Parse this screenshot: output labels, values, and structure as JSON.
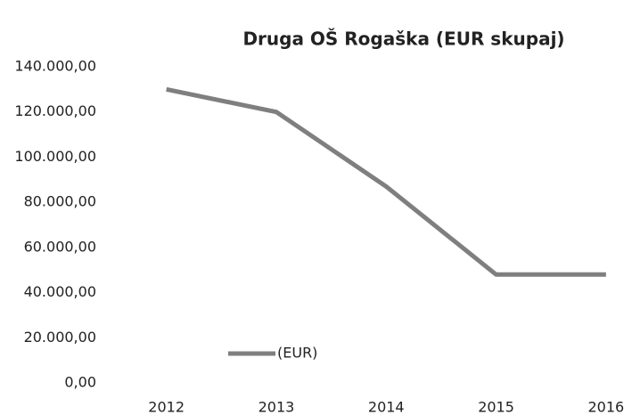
{
  "chart_data": {
    "type": "line",
    "title": "Druga OŠ Rogaška (EUR skupaj)",
    "categories": [
      "2012",
      "2013",
      "2014",
      "2015",
      "2016"
    ],
    "series": [
      {
        "name": "(EUR)",
        "color": "#7f7f7f",
        "values": [
          130000,
          120000,
          87000,
          48000,
          48000
        ]
      }
    ],
    "ylim": [
      0,
      140000
    ],
    "yticks": [
      {
        "value": 0,
        "label": "0,00"
      },
      {
        "value": 20000,
        "label": "20.000,00"
      },
      {
        "value": 40000,
        "label": "40.000,00"
      },
      {
        "value": 60000,
        "label": "60.000,00"
      },
      {
        "value": 80000,
        "label": "80.000,00"
      },
      {
        "value": 100000,
        "label": "100.000,00"
      },
      {
        "value": 120000,
        "label": "120.000,00"
      },
      {
        "value": 140000,
        "label": "140.000,00"
      }
    ],
    "grid": false,
    "legend": "lower left"
  }
}
